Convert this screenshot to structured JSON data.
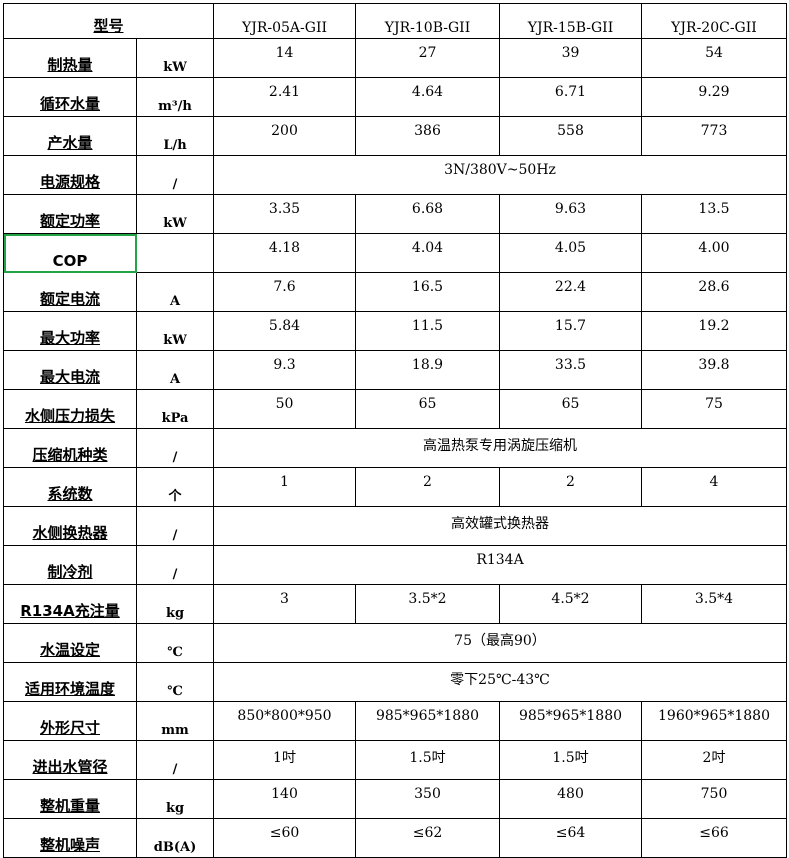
{
  "header": {
    "label": "型号",
    "models": [
      "YJR-05A-GII",
      "YJR-10B-GII",
      "YJR-15B-GII",
      "YJR-20C-GII"
    ]
  },
  "selection_color": "#21a346",
  "rows": [
    {
      "label": "制热量",
      "unit": "kW",
      "values": [
        "14",
        "27",
        "39",
        "54"
      ]
    },
    {
      "label": "循环水量",
      "unit": "m³/h",
      "values": [
        "2.41",
        "4.64",
        "6.71",
        "9.29"
      ]
    },
    {
      "label": "产水量",
      "unit": "L/h",
      "values": [
        "200",
        "386",
        "558",
        "773"
      ]
    },
    {
      "label": "电源规格",
      "unit": "/",
      "merged": "3N/380V~50Hz"
    },
    {
      "label": "额定功率",
      "unit": "kW",
      "values": [
        "3.35",
        "6.68",
        "9.63",
        "13.5"
      ]
    },
    {
      "label": "COP",
      "unit": "",
      "values": [
        "4.18",
        "4.04",
        "4.05",
        "4.00"
      ],
      "selected": true
    },
    {
      "label": "额定电流",
      "unit": "A",
      "values": [
        "7.6",
        "16.5",
        "22.4",
        "28.6"
      ]
    },
    {
      "label": "最大功率",
      "unit": "kW",
      "values": [
        "5.84",
        "11.5",
        "15.7",
        "19.2"
      ]
    },
    {
      "label": "最大电流",
      "unit": "A",
      "values": [
        "9.3",
        "18.9",
        "33.5",
        "39.8"
      ]
    },
    {
      "label": "水侧压力损失",
      "unit": "kPa",
      "values": [
        "50",
        "65",
        "65",
        "75"
      ]
    },
    {
      "label": "压缩机种类",
      "unit": "/",
      "merged": "高温热泵专用涡旋压缩机"
    },
    {
      "label": "系统数",
      "unit": "个",
      "values": [
        "1",
        "2",
        "2",
        "4"
      ]
    },
    {
      "label": "水侧换热器",
      "unit": "/",
      "merged": "高效罐式换热器"
    },
    {
      "label": "制冷剂",
      "unit": "/",
      "merged": "R134A"
    },
    {
      "label": "R134A充注量",
      "unit": "kg",
      "values": [
        "3",
        "3.5*2",
        "4.5*2",
        "3.5*4"
      ]
    },
    {
      "label": "水温设定",
      "unit": "℃",
      "merged": "75（最高90）"
    },
    {
      "label": "适用环境温度",
      "unit": "℃",
      "merged": "零下25℃-43℃"
    },
    {
      "label": "外形尺寸",
      "unit": "mm",
      "values": [
        "850*800*950",
        "985*965*1880",
        "985*965*1880",
        "1960*965*1880"
      ]
    },
    {
      "label": "进出水管径",
      "unit": "/",
      "values": [
        "1吋",
        "1.5吋",
        "1.5吋",
        "2吋"
      ]
    },
    {
      "label": "整机重量",
      "unit": "kg",
      "values": [
        "140",
        "350",
        "480",
        "750"
      ]
    },
    {
      "label": "整机噪声",
      "unit": "dB(A)",
      "values": [
        "≤60",
        "≤62",
        "≤64",
        "≤66"
      ]
    }
  ]
}
